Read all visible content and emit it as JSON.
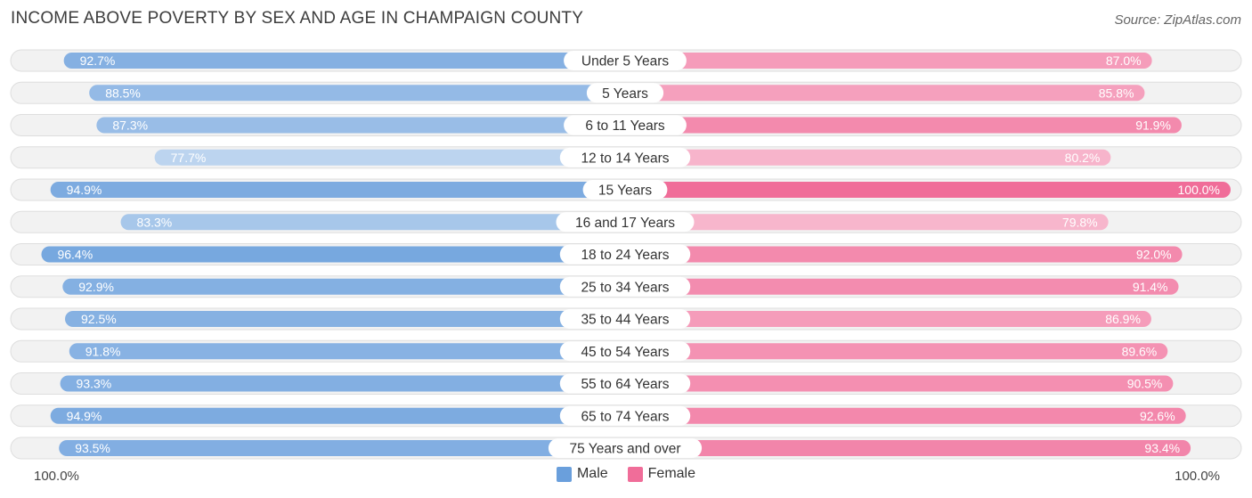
{
  "chart_data": {
    "type": "bar",
    "orientation": "horizontal-diverging",
    "title": "INCOME ABOVE POVERTY BY SEX AND AGE IN CHAMPAIGN COUNTY",
    "source": "Source: ZipAtlas.com",
    "categories": [
      "Under 5 Years",
      "5 Years",
      "6 to 11 Years",
      "12 to 14 Years",
      "15 Years",
      "16 and 17 Years",
      "18 to 24 Years",
      "25 to 34 Years",
      "35 to 44 Years",
      "45 to 54 Years",
      "55 to 64 Years",
      "65 to 74 Years",
      "75 Years and over"
    ],
    "series": [
      {
        "name": "Male",
        "color": "#6a9fdc",
        "values": [
          92.7,
          88.5,
          87.3,
          77.7,
          94.9,
          83.3,
          96.4,
          92.9,
          92.5,
          91.8,
          93.3,
          94.9,
          93.5
        ],
        "labels": [
          "92.7%",
          "88.5%",
          "87.3%",
          "77.7%",
          "94.9%",
          "83.3%",
          "96.4%",
          "92.9%",
          "92.5%",
          "91.8%",
          "93.3%",
          "94.9%",
          "93.5%"
        ]
      },
      {
        "name": "Female",
        "color": "#f06d99",
        "values": [
          87.0,
          85.8,
          91.9,
          80.2,
          100.0,
          79.8,
          92.0,
          91.4,
          86.9,
          89.6,
          90.5,
          92.6,
          93.4
        ],
        "labels": [
          "87.0%",
          "85.8%",
          "91.9%",
          "80.2%",
          "100.0%",
          "79.8%",
          "92.0%",
          "91.4%",
          "86.9%",
          "89.6%",
          "90.5%",
          "92.6%",
          "93.4%"
        ]
      }
    ],
    "xlim": [
      0,
      100
    ],
    "axis_left_label": "100.0%",
    "axis_right_label": "100.0%",
    "legend": [
      {
        "label": "Male",
        "color": "#6a9fdc"
      },
      {
        "label": "Female",
        "color": "#f06d99"
      }
    ]
  }
}
